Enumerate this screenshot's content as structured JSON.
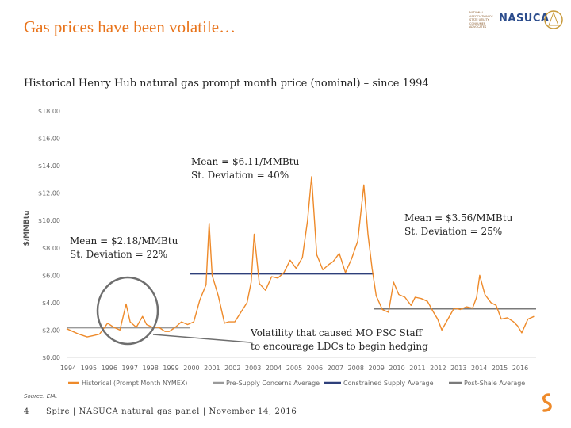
{
  "title": "Gas prices have been volatile…",
  "logo": {
    "small_text": "NATIONAL ASSOCIATION OF STATE UTILITY CONSUMER ADVOCATES",
    "brand": "NASUCA"
  },
  "footer": {
    "source": "Source: EIA.",
    "page_number": "4",
    "text": "Spire | NASUCA natural gas panel | November 14, 2016"
  },
  "annotations": {
    "mid_line1": "Mean = $6.11/MMBtu",
    "mid_line2": "St. Deviation = 40%",
    "left_line1": "Mean = $2.18/MMBtu",
    "left_line2": "St. Deviation = 22%",
    "right_line1": "Mean = $3.56/MMBtu",
    "right_line2": "St. Deviation = 25%",
    "callout_line1": "Volatility that caused MO PSC Staff",
    "callout_line2": "to encourage LDCs to begin hedging"
  },
  "chart_data": {
    "type": "line",
    "title": "Historical Henry Hub natural gas prompt month price (nominal) – since 1994",
    "ylabel": "$/MMBtu",
    "xlabel": "",
    "ylim": [
      0,
      18
    ],
    "xlim": [
      1994,
      2016.9
    ],
    "y_ticks": [
      "$0.00",
      "$2.00",
      "$4.00",
      "$6.00",
      "$8.00",
      "$10.00",
      "$12.00",
      "$14.00",
      "$16.00",
      "$18.00"
    ],
    "x_ticks": [
      "1994",
      "1995",
      "1996",
      "1997",
      "1998",
      "1999",
      "2000",
      "2001",
      "2002",
      "2003",
      "2004",
      "2005",
      "2006",
      "2007",
      "2008",
      "2009",
      "2010",
      "2011",
      "2012",
      "2013",
      "2014",
      "2015",
      "2016"
    ],
    "grid": false,
    "legend_position": "bottom",
    "colors": {
      "historical": "#ee8a2a",
      "pre_supply": "#9a9a9a",
      "constrained": "#2e3f7a",
      "post_shale": "#7a7a7a",
      "circle": "#6e6e6e"
    },
    "series": [
      {
        "name": "Historical (Prompt Month NYMEX)",
        "x": [
          1994.0,
          1994.3,
          1994.6,
          1995.0,
          1995.3,
          1995.6,
          1996.0,
          1996.3,
          1996.6,
          1996.9,
          1997.1,
          1997.4,
          1997.7,
          1997.9,
          1998.2,
          1998.5,
          1998.8,
          1999.0,
          1999.3,
          1999.6,
          1999.9,
          2000.2,
          2000.5,
          2000.8,
          2000.95,
          2001.1,
          2001.4,
          2001.7,
          2001.9,
          2002.2,
          2002.5,
          2002.8,
          2003.0,
          2003.15,
          2003.4,
          2003.7,
          2004.0,
          2004.3,
          2004.6,
          2004.9,
          2005.2,
          2005.5,
          2005.75,
          2005.95,
          2006.2,
          2006.5,
          2006.8,
          2007.0,
          2007.3,
          2007.6,
          2007.9,
          2008.2,
          2008.5,
          2008.7,
          2008.9,
          2009.1,
          2009.4,
          2009.7,
          2009.95,
          2010.2,
          2010.5,
          2010.8,
          2011.0,
          2011.3,
          2011.6,
          2011.9,
          2012.1,
          2012.3,
          2012.6,
          2012.9,
          2013.2,
          2013.5,
          2013.8,
          2014.0,
          2014.15,
          2014.4,
          2014.7,
          2014.95,
          2015.2,
          2015.5,
          2015.8,
          2016.0,
          2016.2,
          2016.5,
          2016.8
        ],
        "values": [
          2.1,
          1.9,
          1.7,
          1.5,
          1.6,
          1.7,
          2.5,
          2.2,
          2.0,
          3.9,
          2.6,
          2.2,
          3.0,
          2.4,
          2.2,
          2.2,
          1.9,
          1.9,
          2.2,
          2.6,
          2.4,
          2.6,
          4.2,
          5.3,
          9.8,
          6.0,
          4.5,
          2.5,
          2.6,
          2.6,
          3.3,
          4.0,
          5.5,
          9.0,
          5.4,
          4.9,
          5.9,
          5.8,
          6.2,
          7.1,
          6.5,
          7.3,
          10.0,
          13.2,
          7.5,
          6.4,
          6.8,
          7.0,
          7.6,
          6.2,
          7.2,
          8.5,
          12.6,
          9.0,
          6.5,
          4.5,
          3.5,
          3.3,
          5.5,
          4.6,
          4.4,
          3.8,
          4.4,
          4.3,
          4.1,
          3.3,
          2.8,
          2.0,
          2.8,
          3.6,
          3.5,
          3.7,
          3.6,
          4.4,
          6.0,
          4.6,
          4.0,
          3.8,
          2.8,
          2.9,
          2.6,
          2.3,
          1.8,
          2.8,
          3.0
        ]
      },
      {
        "name": "Pre-Supply Concerns Average",
        "x": [
          1994,
          2000
        ],
        "values": [
          2.18,
          2.18
        ]
      },
      {
        "name": "Constrained Supply Average",
        "x": [
          2000,
          2009
        ],
        "values": [
          6.11,
          6.11
        ]
      },
      {
        "name": "Post-Shale Average",
        "x": [
          2009,
          2016.9
        ],
        "values": [
          3.56,
          3.56
        ]
      }
    ]
  }
}
